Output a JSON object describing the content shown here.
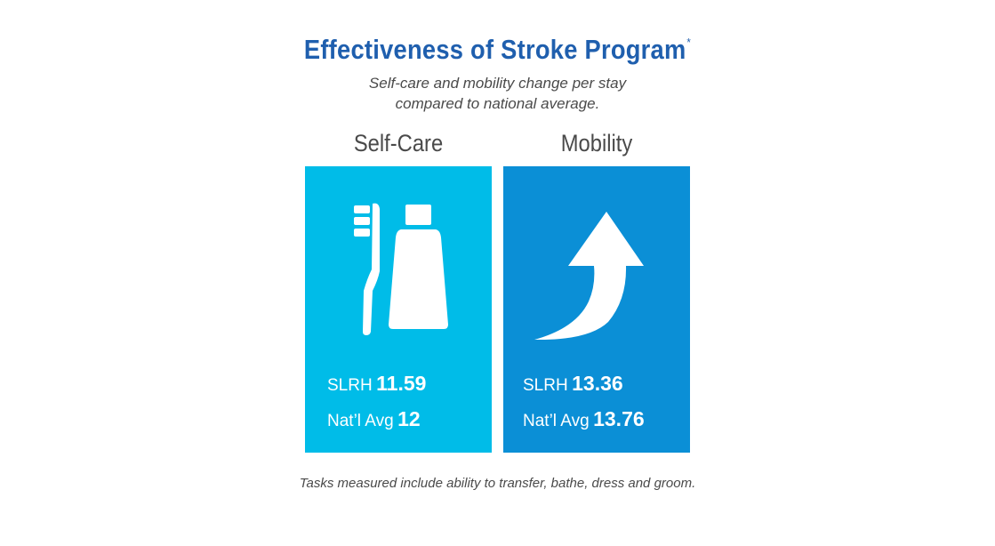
{
  "header": {
    "title": "Effectiveness of Stroke Program",
    "title_mark": "*",
    "subtitle_line1": "Self-care and mobility change per stay",
    "subtitle_line2": "compared to national average."
  },
  "panels": [
    {
      "heading": "Self-Care",
      "icon": "toothbrush-toothpaste-icon",
      "color": "#00bce8",
      "stats": [
        {
          "label": "SLRH",
          "value": "11.59"
        },
        {
          "label": "Nat’l Avg",
          "value": "12"
        }
      ]
    },
    {
      "heading": "Mobility",
      "icon": "up-arrow-icon",
      "color": "#0b8fd6",
      "stats": [
        {
          "label": "SLRH",
          "value": "13.36"
        },
        {
          "label": "Nat’l Avg",
          "value": "13.76"
        }
      ]
    }
  ],
  "footnote": "Tasks measured include ability to transfer, bathe, dress and groom.",
  "colors": {
    "title": "#1f5fae",
    "text": "#4a4a4a",
    "self_care_panel": "#00bce8",
    "mobility_panel": "#0b8fd6"
  }
}
